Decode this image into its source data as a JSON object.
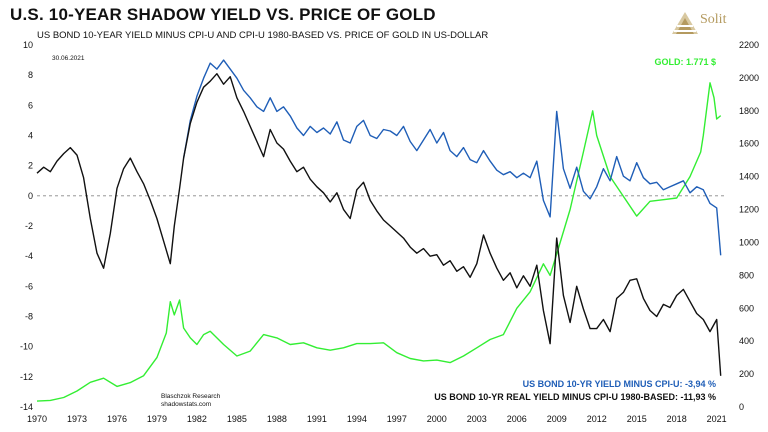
{
  "brand": {
    "name": "Solit"
  },
  "chart_data": {
    "type": "line",
    "title": "U.S. 10-YEAR SHADOW YIELD VS. PRICE OF GOLD",
    "subtitle": "US BOND 10-YEAR YIELD MINUS CPI-U AND CPI-U 1980-BASED VS. PRICE OF GOLD IN US-DOLLAR",
    "date_stamp": "30.06.2021",
    "source": [
      "Blaschzok Research",
      "shadowstats.com"
    ],
    "x_ticks": [
      "1970",
      "1973",
      "1976",
      "1979",
      "1982",
      "1985",
      "1988",
      "1991",
      "1994",
      "1997",
      "2000",
      "2003",
      "2006",
      "2009",
      "2012",
      "2015",
      "2018",
      "2021"
    ],
    "y_left_ticks": [
      "10",
      "8",
      "6",
      "4",
      "2",
      "0",
      "-2",
      "-4",
      "-6",
      "-8",
      "-10",
      "-12",
      "-14"
    ],
    "y_right_ticks": [
      "2200",
      "2000",
      "1800",
      "1600",
      "1400",
      "1200",
      "1000",
      "800",
      "600",
      "400",
      "200",
      "0"
    ],
    "xlim": [
      1970,
      2021.7
    ],
    "ylim_left": [
      -14,
      10
    ],
    "ylim_right": [
      0,
      2200
    ],
    "colors": {
      "gold": "#33ee33",
      "cpiu": "#1f5eb7",
      "real": "#111111",
      "zero": "#888888"
    },
    "series": [
      {
        "name": "US BOND 10-YR REAL YIELD MINUS CPI-U 1980-BASED",
        "label": "US BOND 10-YR REAL YIELD MINUS CPI-U 1980-BASED: -11,93 %",
        "axis": "left",
        "points": [
          [
            1970,
            1.5
          ],
          [
            1970.5,
            1.9
          ],
          [
            1971,
            1.6
          ],
          [
            1971.5,
            2.3
          ],
          [
            1972,
            2.8
          ],
          [
            1972.5,
            3.2
          ],
          [
            1973,
            2.7
          ],
          [
            1973.5,
            1.2
          ],
          [
            1974,
            -1.5
          ],
          [
            1974.5,
            -3.8
          ],
          [
            1975,
            -4.8
          ],
          [
            1975.5,
            -2.5
          ],
          [
            1976,
            0.5
          ],
          [
            1976.5,
            1.8
          ],
          [
            1977,
            2.5
          ],
          [
            1977.5,
            1.6
          ],
          [
            1978,
            0.8
          ],
          [
            1978.5,
            -0.3
          ],
          [
            1979,
            -1.5
          ],
          [
            1979.5,
            -3.0
          ],
          [
            1980,
            -4.5
          ],
          [
            1980.3,
            -2.0
          ],
          [
            1980.7,
            0.5
          ],
          [
            1981,
            2.5
          ],
          [
            1981.5,
            4.8
          ],
          [
            1982,
            6.2
          ],
          [
            1982.5,
            7.2
          ],
          [
            1983,
            7.6
          ],
          [
            1983.5,
            8.1
          ],
          [
            1984,
            7.4
          ],
          [
            1984.5,
            7.9
          ],
          [
            1985,
            6.5
          ],
          [
            1985.5,
            5.6
          ],
          [
            1986,
            4.6
          ],
          [
            1986.5,
            3.6
          ],
          [
            1987,
            2.6
          ],
          [
            1987.5,
            4.4
          ],
          [
            1988,
            3.5
          ],
          [
            1988.5,
            3.1
          ],
          [
            1989,
            2.3
          ],
          [
            1989.5,
            1.6
          ],
          [
            1990,
            1.9
          ],
          [
            1990.5,
            1.1
          ],
          [
            1991,
            0.6
          ],
          [
            1991.5,
            0.2
          ],
          [
            1992,
            -0.4
          ],
          [
            1992.5,
            0.2
          ],
          [
            1993,
            -0.9
          ],
          [
            1993.5,
            -1.5
          ],
          [
            1994,
            0.4
          ],
          [
            1994.5,
            0.9
          ],
          [
            1995,
            -0.3
          ],
          [
            1995.5,
            -1.0
          ],
          [
            1996,
            -1.6
          ],
          [
            1996.5,
            -2.0
          ],
          [
            1997,
            -2.4
          ],
          [
            1997.5,
            -2.8
          ],
          [
            1998,
            -3.4
          ],
          [
            1998.5,
            -3.8
          ],
          [
            1999,
            -3.5
          ],
          [
            1999.5,
            -4.0
          ],
          [
            2000,
            -3.9
          ],
          [
            2000.5,
            -4.6
          ],
          [
            2001,
            -4.3
          ],
          [
            2001.5,
            -5.0
          ],
          [
            2002,
            -4.7
          ],
          [
            2002.5,
            -5.4
          ],
          [
            2003,
            -4.5
          ],
          [
            2003.5,
            -2.6
          ],
          [
            2004,
            -3.8
          ],
          [
            2004.5,
            -4.8
          ],
          [
            2005,
            -5.6
          ],
          [
            2005.5,
            -5.1
          ],
          [
            2006,
            -6.1
          ],
          [
            2006.5,
            -5.3
          ],
          [
            2007,
            -6.0
          ],
          [
            2007.5,
            -4.6
          ],
          [
            2008,
            -7.6
          ],
          [
            2008.5,
            -9.8
          ],
          [
            2009,
            -2.8
          ],
          [
            2009.5,
            -6.6
          ],
          [
            2010,
            -8.4
          ],
          [
            2010.5,
            -6.0
          ],
          [
            2011,
            -7.5
          ],
          [
            2011.5,
            -8.8
          ],
          [
            2012,
            -8.8
          ],
          [
            2012.5,
            -8.2
          ],
          [
            2013,
            -9.0
          ],
          [
            2013.5,
            -6.8
          ],
          [
            2014,
            -6.4
          ],
          [
            2014.5,
            -5.6
          ],
          [
            2015,
            -5.5
          ],
          [
            2015.5,
            -6.8
          ],
          [
            2016,
            -7.6
          ],
          [
            2016.5,
            -8.0
          ],
          [
            2017,
            -7.2
          ],
          [
            2017.5,
            -7.4
          ],
          [
            2018,
            -6.6
          ],
          [
            2018.5,
            -6.2
          ],
          [
            2019,
            -7.0
          ],
          [
            2019.5,
            -7.8
          ],
          [
            2020,
            -8.2
          ],
          [
            2020.5,
            -9.0
          ],
          [
            2021,
            -8.2
          ],
          [
            2021.3,
            -11.93
          ]
        ]
      },
      {
        "name": "US BOND 10-YR YIELD MINUS CPI-U",
        "label": "US BOND 10-YR YIELD MINUS CPI-U: -3,94 %",
        "axis": "left",
        "points": [
          [
            1981,
            2.5
          ],
          [
            1981.5,
            5.0
          ],
          [
            1982,
            6.6
          ],
          [
            1982.5,
            7.8
          ],
          [
            1983,
            8.8
          ],
          [
            1983.5,
            8.4
          ],
          [
            1984,
            9.0
          ],
          [
            1984.5,
            8.4
          ],
          [
            1985,
            7.8
          ],
          [
            1985.5,
            7.0
          ],
          [
            1986,
            6.5
          ],
          [
            1986.5,
            5.9
          ],
          [
            1987,
            5.6
          ],
          [
            1987.5,
            6.5
          ],
          [
            1988,
            5.6
          ],
          [
            1988.5,
            5.9
          ],
          [
            1989,
            5.3
          ],
          [
            1989.5,
            4.5
          ],
          [
            1990,
            4.0
          ],
          [
            1990.5,
            4.6
          ],
          [
            1991,
            4.2
          ],
          [
            1991.5,
            4.5
          ],
          [
            1992,
            4.1
          ],
          [
            1992.5,
            4.9
          ],
          [
            1993,
            3.7
          ],
          [
            1993.5,
            3.5
          ],
          [
            1994,
            4.6
          ],
          [
            1994.5,
            5.0
          ],
          [
            1995,
            4.0
          ],
          [
            1995.5,
            3.8
          ],
          [
            1996,
            4.4
          ],
          [
            1996.5,
            4.3
          ],
          [
            1997,
            4.0
          ],
          [
            1997.5,
            4.6
          ],
          [
            1998,
            3.6
          ],
          [
            1998.5,
            3.0
          ],
          [
            1999,
            3.7
          ],
          [
            1999.5,
            4.4
          ],
          [
            2000,
            3.5
          ],
          [
            2000.5,
            4.2
          ],
          [
            2001,
            3.0
          ],
          [
            2001.5,
            2.6
          ],
          [
            2002,
            3.2
          ],
          [
            2002.5,
            2.4
          ],
          [
            2003,
            2.2
          ],
          [
            2003.5,
            3.0
          ],
          [
            2004,
            2.3
          ],
          [
            2004.5,
            1.7
          ],
          [
            2005,
            1.4
          ],
          [
            2005.5,
            1.6
          ],
          [
            2006,
            1.2
          ],
          [
            2006.5,
            1.5
          ],
          [
            2007,
            1.2
          ],
          [
            2007.5,
            2.3
          ],
          [
            2008,
            -0.3
          ],
          [
            2008.5,
            -1.4
          ],
          [
            2009,
            5.6
          ],
          [
            2009.5,
            1.8
          ],
          [
            2010,
            0.5
          ],
          [
            2010.5,
            1.9
          ],
          [
            2011,
            0.3
          ],
          [
            2011.5,
            -0.2
          ],
          [
            2012,
            0.6
          ],
          [
            2012.5,
            1.8
          ],
          [
            2013,
            1.0
          ],
          [
            2013.5,
            2.6
          ],
          [
            2014,
            1.3
          ],
          [
            2014.5,
            1.0
          ],
          [
            2015,
            2.2
          ],
          [
            2015.5,
            1.2
          ],
          [
            2016,
            0.8
          ],
          [
            2016.5,
            0.9
          ],
          [
            2017,
            0.4
          ],
          [
            2017.5,
            0.6
          ],
          [
            2018,
            0.8
          ],
          [
            2018.5,
            1.0
          ],
          [
            2019,
            0.2
          ],
          [
            2019.5,
            0.6
          ],
          [
            2020,
            0.4
          ],
          [
            2020.5,
            -0.5
          ],
          [
            2021,
            -0.8
          ],
          [
            2021.3,
            -3.94
          ]
        ]
      },
      {
        "name": "GOLD",
        "label": "GOLD: 1.771 $",
        "axis": "right",
        "points": [
          [
            1970,
            36
          ],
          [
            1971,
            40
          ],
          [
            1972,
            58
          ],
          [
            1973,
            97
          ],
          [
            1974,
            150
          ],
          [
            1975,
            175
          ],
          [
            1976,
            125
          ],
          [
            1977,
            148
          ],
          [
            1978,
            190
          ],
          [
            1979,
            300
          ],
          [
            1979.7,
            450
          ],
          [
            1980,
            640
          ],
          [
            1980.3,
            560
          ],
          [
            1980.7,
            650
          ],
          [
            1981,
            480
          ],
          [
            1981.5,
            420
          ],
          [
            1982,
            380
          ],
          [
            1982.5,
            440
          ],
          [
            1983,
            460
          ],
          [
            1983.5,
            420
          ],
          [
            1984,
            380
          ],
          [
            1985,
            310
          ],
          [
            1986,
            340
          ],
          [
            1987,
            440
          ],
          [
            1988,
            420
          ],
          [
            1989,
            380
          ],
          [
            1990,
            390
          ],
          [
            1991,
            360
          ],
          [
            1992,
            345
          ],
          [
            1993,
            360
          ],
          [
            1994,
            385
          ],
          [
            1995,
            385
          ],
          [
            1996,
            390
          ],
          [
            1997,
            330
          ],
          [
            1998,
            295
          ],
          [
            1999,
            280
          ],
          [
            2000,
            285
          ],
          [
            2001,
            270
          ],
          [
            2002,
            310
          ],
          [
            2003,
            360
          ],
          [
            2004,
            410
          ],
          [
            2005,
            440
          ],
          [
            2006,
            600
          ],
          [
            2007,
            700
          ],
          [
            2008,
            870
          ],
          [
            2008.5,
            800
          ],
          [
            2009,
            930
          ],
          [
            2010,
            1200
          ],
          [
            2011,
            1550
          ],
          [
            2011.7,
            1800
          ],
          [
            2012,
            1650
          ],
          [
            2013,
            1400
          ],
          [
            2014,
            1280
          ],
          [
            2015,
            1160
          ],
          [
            2016,
            1250
          ],
          [
            2017,
            1260
          ],
          [
            2018,
            1270
          ],
          [
            2019,
            1400
          ],
          [
            2019.8,
            1550
          ],
          [
            2020,
            1650
          ],
          [
            2020.5,
            1970
          ],
          [
            2020.8,
            1880
          ],
          [
            2021,
            1750
          ],
          [
            2021.3,
            1771
          ]
        ]
      }
    ]
  }
}
